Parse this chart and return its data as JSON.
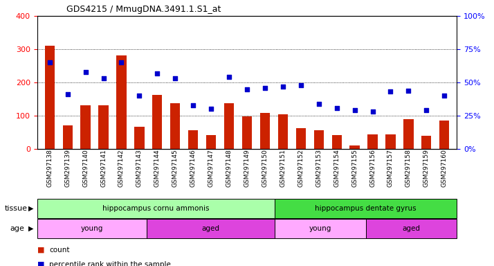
{
  "title": "GDS4215 / MmugDNA.3491.1.S1_at",
  "samples": [
    "GSM297138",
    "GSM297139",
    "GSM297140",
    "GSM297141",
    "GSM297142",
    "GSM297143",
    "GSM297144",
    "GSM297145",
    "GSM297146",
    "GSM297147",
    "GSM297148",
    "GSM297149",
    "GSM297150",
    "GSM297151",
    "GSM297152",
    "GSM297153",
    "GSM297154",
    "GSM297155",
    "GSM297156",
    "GSM297157",
    "GSM297158",
    "GSM297159",
    "GSM297160"
  ],
  "counts": [
    311,
    70,
    131,
    131,
    281,
    67,
    163,
    137,
    57,
    42,
    138,
    98,
    109,
    105,
    62,
    56,
    42,
    10,
    43,
    43,
    90,
    40,
    85
  ],
  "percentiles": [
    65,
    41,
    58,
    53,
    65,
    40,
    57,
    53,
    33,
    30,
    54,
    45,
    46,
    47,
    48,
    34,
    31,
    29,
    28,
    43,
    44,
    29,
    40
  ],
  "bar_color": "#cc2200",
  "dot_color": "#0000cc",
  "ylim_left": [
    0,
    400
  ],
  "ylim_right": [
    0,
    100
  ],
  "yticks_left": [
    0,
    100,
    200,
    300,
    400
  ],
  "yticks_right": [
    0,
    25,
    50,
    75,
    100
  ],
  "yticklabels_right": [
    "0%",
    "25%",
    "50%",
    "75%",
    "100%"
  ],
  "tissue_groups": [
    {
      "label": "hippocampus cornu ammonis",
      "start": 0,
      "end": 13,
      "color": "#aaffaa"
    },
    {
      "label": "hippocampus dentate gyrus",
      "start": 13,
      "end": 23,
      "color": "#44dd44"
    }
  ],
  "age_groups": [
    {
      "label": "young",
      "start": 0,
      "end": 6,
      "color": "#ffaaff"
    },
    {
      "label": "aged",
      "start": 6,
      "end": 13,
      "color": "#dd44dd"
    },
    {
      "label": "young",
      "start": 13,
      "end": 18,
      "color": "#ffaaff"
    },
    {
      "label": "aged",
      "start": 18,
      "end": 23,
      "color": "#dd44dd"
    }
  ],
  "legend_items": [
    {
      "label": "count",
      "color": "#cc2200"
    },
    {
      "label": "percentile rank within the sample",
      "color": "#0000cc"
    }
  ],
  "background_color": "#ffffff",
  "tissue_label": "tissue",
  "age_label": "age"
}
